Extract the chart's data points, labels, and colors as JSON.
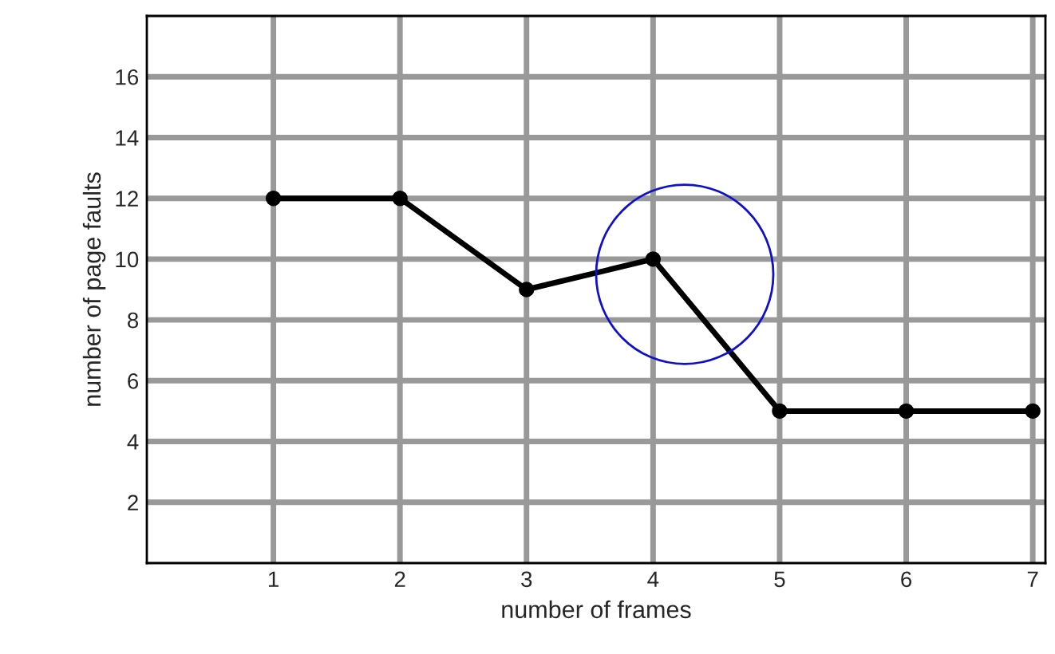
{
  "chart_data": {
    "type": "line",
    "xlabel": "number of frames",
    "ylabel": "number of page faults",
    "x": [
      1,
      2,
      3,
      4,
      5,
      6,
      7
    ],
    "series": [
      {
        "color": "#000000",
        "values": [
          12,
          12,
          9,
          10,
          5,
          5,
          5
        ]
      }
    ],
    "xlim": [
      0,
      7.1
    ],
    "xticks": [
      1,
      2,
      3,
      4,
      5,
      6,
      7
    ],
    "ylim": [
      0,
      18
    ],
    "yticks": [
      2,
      4,
      6,
      8,
      10,
      12,
      14,
      16
    ],
    "grid": true,
    "marker": "circle",
    "line_style": "solid"
  }
}
